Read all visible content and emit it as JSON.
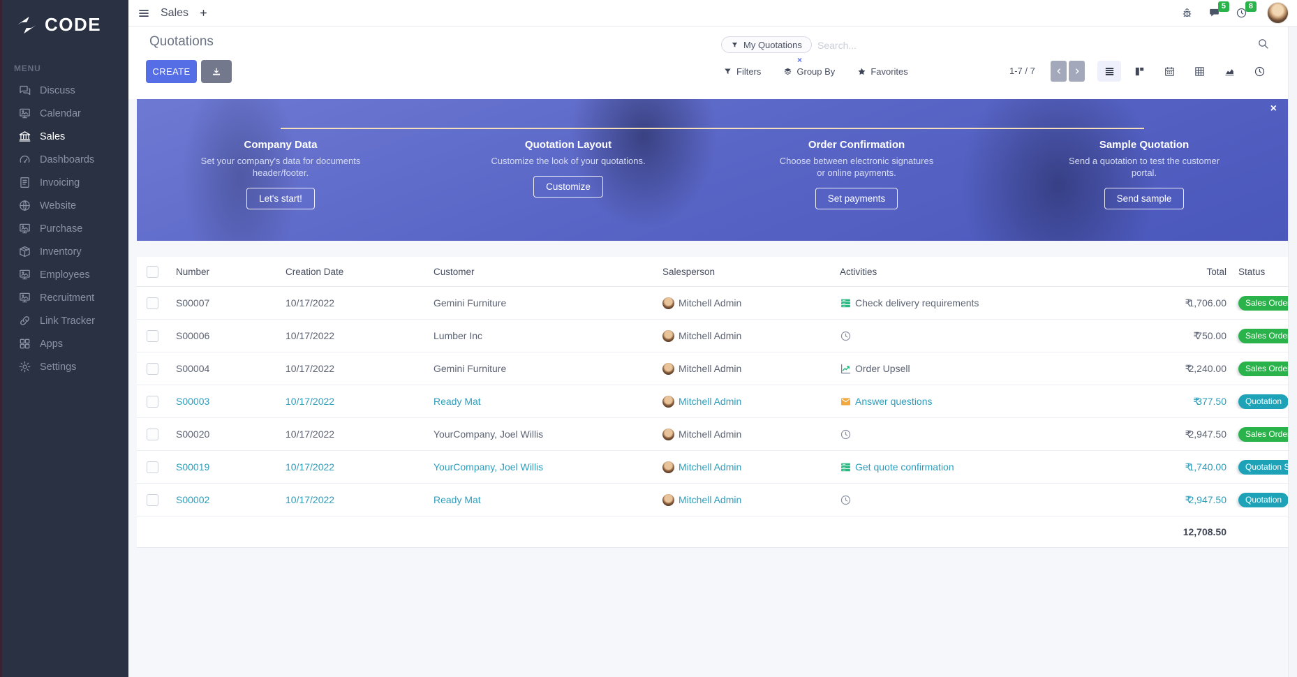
{
  "brand": {
    "name": "CODE"
  },
  "topbar": {
    "app_tab": "Sales",
    "messages_badge": "5",
    "activities_badge": "8"
  },
  "sidebar": {
    "menu_label": "MENU",
    "items": [
      {
        "label": "Discuss",
        "icon": "discuss-icon",
        "active": false
      },
      {
        "label": "Calendar",
        "icon": "screen-icon",
        "active": false
      },
      {
        "label": "Sales",
        "icon": "sales-icon",
        "active": true
      },
      {
        "label": "Dashboards",
        "icon": "dashboards-icon",
        "active": false
      },
      {
        "label": "Invoicing",
        "icon": "invoicing-icon",
        "active": false
      },
      {
        "label": "Website",
        "icon": "website-icon",
        "active": false
      },
      {
        "label": "Purchase",
        "icon": "screen-icon",
        "active": false
      },
      {
        "label": "Inventory",
        "icon": "inventory-icon",
        "active": false
      },
      {
        "label": "Employees",
        "icon": "screen-icon",
        "active": false
      },
      {
        "label": "Recruitment",
        "icon": "screen-icon",
        "active": false
      },
      {
        "label": "Link Tracker",
        "icon": "link-tracker-icon",
        "active": false
      },
      {
        "label": "Apps",
        "icon": "apps-icon",
        "active": false
      },
      {
        "label": "Settings",
        "icon": "settings-icon",
        "active": false
      }
    ]
  },
  "control_panel": {
    "title": "Quotations",
    "create_label": "CREATE",
    "search": {
      "facet_label": "My Quotations",
      "facet_remove": "×",
      "placeholder": "Search..."
    },
    "filters_label": "Filters",
    "group_by_label": "Group By",
    "favorites_label": "Favorites",
    "pager": {
      "text": "1-7 / 7",
      "prev": "‹",
      "next": "›"
    }
  },
  "banner": {
    "close": "×",
    "steps": [
      {
        "title": "Company Data",
        "description": "Set your company's data for documents header/footer.",
        "button": "Let's start!"
      },
      {
        "title": "Quotation Layout",
        "description": "Customize the look of your quotations.",
        "button": "Customize"
      },
      {
        "title": "Order Confirmation",
        "description": "Choose between electronic signatures or online payments.",
        "button": "Set payments"
      },
      {
        "title": "Sample Quotation",
        "description": "Send a quotation to test the customer portal.",
        "button": "Send sample"
      }
    ]
  },
  "table": {
    "columns": [
      "Number",
      "Creation Date",
      "Customer",
      "Salesperson",
      "Activities",
      "Total",
      "Status"
    ],
    "rows": [
      {
        "number": "S00007",
        "creation_date": "10/17/2022",
        "customer": "Gemini Furniture",
        "salesperson": "Mitchell Admin",
        "activity": {
          "icon": "list-activity-icon",
          "label": "Check delivery requirements",
          "color": "#27B981"
        },
        "total": "₹1,706.00",
        "status": {
          "label": "Sales Order",
          "variant": "success"
        },
        "link_style": false
      },
      {
        "number": "S00006",
        "creation_date": "10/17/2022",
        "customer": "Lumber Inc",
        "salesperson": "Mitchell Admin",
        "activity": {
          "icon": "clock-activity-icon",
          "label": "",
          "color": "#8A90A0"
        },
        "total": "₹750.00",
        "status": {
          "label": "Sales Order",
          "variant": "success"
        },
        "link_style": false
      },
      {
        "number": "S00004",
        "creation_date": "10/17/2022",
        "customer": "Gemini Furniture",
        "salesperson": "Mitchell Admin",
        "activity": {
          "icon": "chart-activity-icon",
          "label": "Order Upsell",
          "color": "#27B981"
        },
        "total": "₹2,240.00",
        "status": {
          "label": "Sales Order",
          "variant": "success"
        },
        "link_style": false
      },
      {
        "number": "S00003",
        "creation_date": "10/17/2022",
        "customer": "Ready Mat",
        "salesperson": "Mitchell Admin",
        "activity": {
          "icon": "envelope-activity-icon",
          "label": "Answer questions",
          "color": "#EFA83D"
        },
        "total": "₹377.50",
        "status": {
          "label": "Quotation",
          "variant": "info"
        },
        "link_style": true
      },
      {
        "number": "S00020",
        "creation_date": "10/17/2022",
        "customer": "YourCompany, Joel Willis",
        "salesperson": "Mitchell Admin",
        "activity": {
          "icon": "clock-activity-icon",
          "label": "",
          "color": "#8A90A0"
        },
        "total": "₹2,947.50",
        "status": {
          "label": "Sales Order",
          "variant": "success"
        },
        "link_style": false
      },
      {
        "number": "S00019",
        "creation_date": "10/17/2022",
        "customer": "YourCompany, Joel Willis",
        "salesperson": "Mitchell Admin",
        "activity": {
          "icon": "list-activity-icon",
          "label": "Get quote confirmation",
          "color": "#27B981"
        },
        "total": "₹1,740.00",
        "status": {
          "label": "Quotation Sent",
          "variant": "info"
        },
        "link_style": true
      },
      {
        "number": "S00002",
        "creation_date": "10/17/2022",
        "customer": "Ready Mat",
        "salesperson": "Mitchell Admin",
        "activity": {
          "icon": "clock-activity-icon",
          "label": "",
          "color": "#8A90A0"
        },
        "total": "₹2,947.50",
        "status": {
          "label": "Quotation",
          "variant": "info"
        },
        "link_style": true
      }
    ],
    "sum_total": "12,708.50"
  },
  "colors": {
    "accent": "#556EE6",
    "sidebar_bg": "#2A3142",
    "success_badge": "#2BB34B",
    "info_badge": "#1DA2B8",
    "quotation_link_text": "#2D9DBC",
    "banner_dot": "#F3E0BA",
    "activity_green": "#27B981",
    "activity_orange": "#EFA83D",
    "activity_clock_grey": "#8A90A0",
    "badge_count_green": "#2BB34B"
  }
}
